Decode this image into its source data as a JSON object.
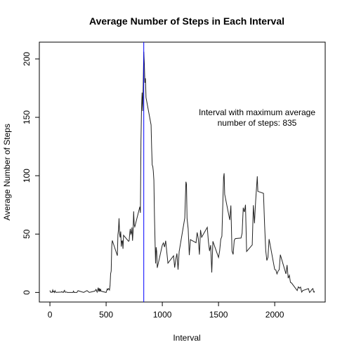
{
  "chart_data": {
    "type": "line",
    "title": "Average Number of Steps in Each Interval",
    "x_label": "Interval",
    "y_label": "Average Number of Steps",
    "annotation": [
      "Interval with maximum average",
      "number of steps:  835"
    ],
    "vline": {
      "value": 835,
      "color": "#0000ff"
    },
    "color": "#222222",
    "xlim": [
      -94.2,
      2449.2
    ],
    "ylim": [
      -8.2,
      214.4
    ],
    "xticks": [
      0,
      500,
      1000,
      1500,
      2000
    ],
    "yticks": [
      0,
      50,
      100,
      150,
      200
    ],
    "x": [
      0,
      5,
      10,
      15,
      20,
      25,
      30,
      35,
      40,
      45,
      50,
      55,
      100,
      105,
      110,
      115,
      120,
      125,
      130,
      135,
      140,
      145,
      150,
      155,
      200,
      205,
      210,
      215,
      220,
      230,
      240,
      250,
      300,
      330,
      350,
      400,
      410,
      420,
      430,
      435,
      440,
      445,
      450,
      455,
      500,
      505,
      510,
      515,
      520,
      525,
      530,
      535,
      540,
      545,
      550,
      555,
      600,
      605,
      610,
      615,
      620,
      625,
      630,
      635,
      640,
      645,
      650,
      655,
      700,
      705,
      710,
      715,
      720,
      725,
      730,
      735,
      740,
      745,
      750,
      755,
      800,
      805,
      810,
      815,
      820,
      825,
      830,
      835,
      840,
      845,
      850,
      855,
      900,
      905,
      910,
      915,
      920,
      925,
      930,
      935,
      940,
      945,
      950,
      955,
      1000,
      1010,
      1020,
      1030,
      1040,
      1050,
      1100,
      1110,
      1120,
      1130,
      1140,
      1150,
      1200,
      1210,
      1215,
      1220,
      1230,
      1240,
      1250,
      1300,
      1310,
      1320,
      1330,
      1340,
      1350,
      1400,
      1410,
      1420,
      1430,
      1440,
      1450,
      1500,
      1510,
      1520,
      1530,
      1545,
      1550,
      1555,
      1600,
      1610,
      1620,
      1630,
      1640,
      1650,
      1700,
      1710,
      1720,
      1730,
      1740,
      1750,
      1800,
      1810,
      1820,
      1830,
      1845,
      1850,
      1900,
      1910,
      1920,
      1930,
      1940,
      1950,
      2000,
      2010,
      2020,
      2030,
      2040,
      2050,
      2100,
      2110,
      2120,
      2130,
      2140,
      2150,
      2200,
      2210,
      2220,
      2230,
      2240,
      2250,
      2300,
      2310,
      2320,
      2330,
      2340,
      2345,
      2350,
      2355
    ],
    "values": [
      1.7,
      0.3,
      0.1,
      0.2,
      0.1,
      2.1,
      0.5,
      0.9,
      0,
      1.5,
      0.3,
      0.1,
      0.3,
      0.7,
      0.2,
      0.3,
      0,
      1.1,
      1.8,
      0.2,
      0.2,
      0.4,
      0.3,
      0,
      0,
      0,
      1.1,
      0,
      0,
      0,
      0,
      1.5,
      0,
      1.6,
      0,
      1.2,
      2.6,
      0.3,
      4.1,
      0.7,
      3.5,
      0.8,
      3.1,
      1.1,
      0,
      1.6,
      3,
      2.2,
      3.3,
      3,
      2.1,
      6.1,
      16,
      18.3,
      39.5,
      44.5,
      31.5,
      49.3,
      53.8,
      63.5,
      50,
      47.1,
      52.2,
      39.3,
      44,
      44.2,
      37.4,
      49,
      43.8,
      44.4,
      50.5,
      54.5,
      49.9,
      51,
      55.7,
      44.3,
      52.3,
      69.5,
      57.8,
      56.2,
      73.4,
      68.2,
      129.4,
      157.5,
      171.2,
      155.4,
      177.3,
      206.2,
      195.9,
      179.6,
      183.4,
      167,
      143.5,
      124,
      109.1,
      108.1,
      103.7,
      96,
      66.2,
      45.2,
      24.8,
      38.8,
      35,
      21.1,
      40.6,
      42.4,
      38.9,
      44.3,
      34.5,
      25.1,
      31.4,
      21.3,
      28.4,
      33.4,
      19.6,
      35.1,
      63.9,
      94.8,
      92.8,
      63.4,
      54.5,
      32,
      45.2,
      42.6,
      51.4,
      46.2,
      32.4,
      53.5,
      47.3,
      55.8,
      43.6,
      35.5,
      40.5,
      17.1,
      43.8,
      30,
      35.5,
      45.5,
      48.1,
      98.7,
      102.1,
      84,
      62.1,
      74.5,
      35.5,
      32.6,
      44.7,
      46.2,
      46.6,
      50.7,
      72.6,
      68.9,
      75.1,
      35.1,
      40.7,
      74.7,
      59.3,
      77.8,
      99.5,
      86.6,
      84.9,
      58,
      36.1,
      27.4,
      30.2,
      45.7,
      19.6,
      19.3,
      15.9,
      18.3,
      19.5,
      32.3,
      15.9,
      23.5,
      12.2,
      14.7,
      8.7,
      8.1,
      1.6,
      4.8,
      3.7,
      4.6,
      0.3,
      1.6,
      3.3,
      0,
      1,
      2.6,
      3.3,
      0.6,
      0.2,
      1.1
    ]
  }
}
